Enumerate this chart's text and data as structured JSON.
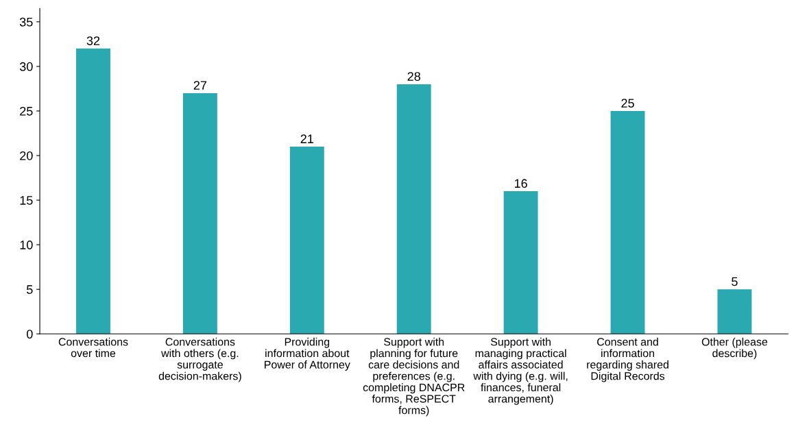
{
  "chart_data": {
    "type": "bar",
    "categories": [
      "Conversations\nover time",
      "Conversations\nwith others (e.g.\nsurrogate\ndecision-makers)",
      "Providing\ninformation about\nPower of Attorney",
      "Support with\nplanning for future\ncare decisions and\npreferences (e.g.\ncompleting DNACPR\nforms, ReSPECT\nforms)",
      "Support with\nmanaging practical\naffairs associated\nwith dying (e.g. will,\nfinances, funeral\narrangement)",
      "Consent and\ninformation\nregarding shared\nDigital Records",
      "Other (please\ndescribe)"
    ],
    "values": [
      32,
      27,
      21,
      28,
      16,
      25,
      5
    ],
    "color": "#2aa9b0",
    "ylim": [
      0,
      36.5
    ],
    "yticks": [
      0,
      5,
      10,
      15,
      20,
      25,
      30,
      35
    ],
    "data_labels": true,
    "grid": false,
    "legend": false
  }
}
